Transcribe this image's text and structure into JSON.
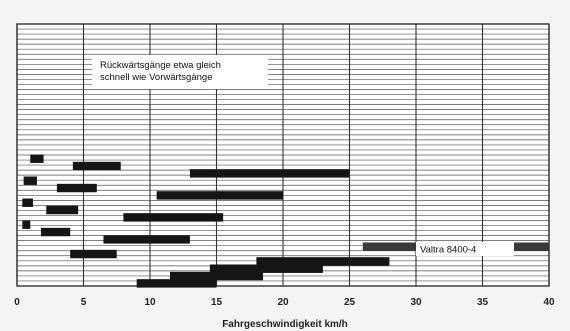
{
  "chart_data": {
    "type": "bar",
    "subtype": "floating-range-bars",
    "xlabel": "Fahrgeschwindigkeit km/h",
    "ylabel": "",
    "xlim": [
      0,
      40
    ],
    "xticks": [
      0,
      5,
      10,
      15,
      20,
      25,
      30,
      35,
      40
    ],
    "grid": true,
    "annotations": [
      {
        "text_lines": [
          "Rückwärtsgänge etwa gleich",
          "schnell wie Vorwärtsgänge"
        ],
        "placement": "upper-left"
      },
      {
        "text_lines": [
          "Valtra 8400-4"
        ],
        "placement": "lower-right"
      }
    ],
    "gear_rows": [
      {
        "x": [
          1.0,
          2.0
        ]
      },
      {
        "x": [
          4.2,
          7.8
        ]
      },
      {
        "x": [
          13.0,
          25.0
        ]
      },
      {
        "x": [
          0.5,
          1.5
        ]
      },
      {
        "x": [
          3.0,
          6.0
        ]
      },
      {
        "x": [
          10.5,
          20.0
        ]
      },
      {
        "x": [
          0.4,
          1.2
        ]
      },
      {
        "x": [
          2.2,
          4.6
        ]
      },
      {
        "x": [
          8.0,
          15.5
        ]
      },
      {
        "x": [
          0.4,
          1.0
        ]
      },
      {
        "x": [
          1.8,
          4.0
        ]
      },
      {
        "x": [
          6.5,
          13.0
        ]
      },
      {
        "x": [
          26.0,
          40.0
        ]
      },
      {
        "x": [
          4.0,
          7.5
        ]
      },
      {
        "x": [
          18.0,
          28.0
        ]
      },
      {
        "x": [
          14.5,
          23.0
        ]
      },
      {
        "x": [
          11.5,
          18.5
        ]
      },
      {
        "x": [
          9.0,
          15.0
        ]
      }
    ]
  }
}
